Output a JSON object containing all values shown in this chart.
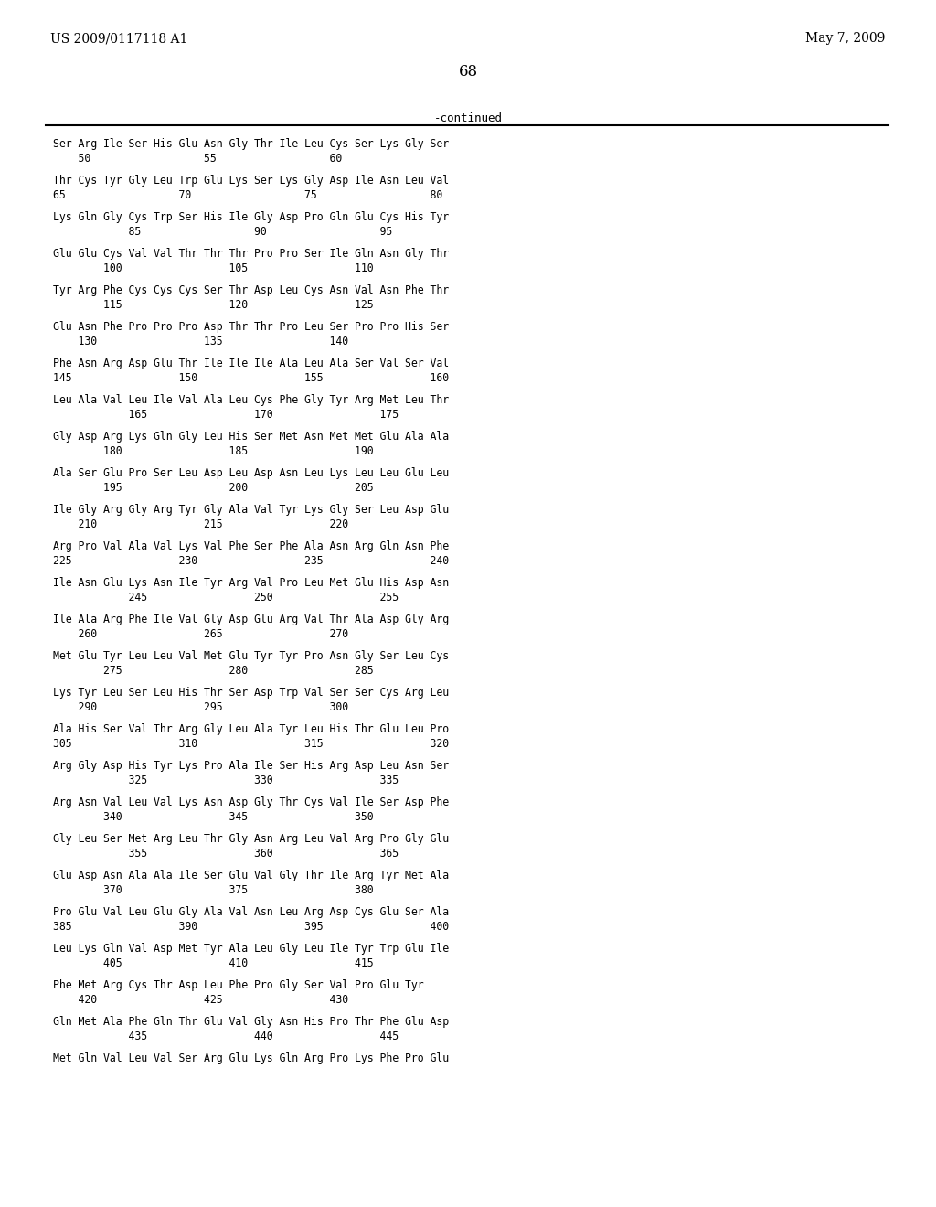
{
  "header_left": "US 2009/0117118 A1",
  "header_right": "May 7, 2009",
  "page_number": "68",
  "continued_label": "-continued",
  "seq_entries": [
    {
      "seq": "Ser Arg Ile Ser His Glu Asn Gly Thr Ile Leu Cys Ser Lys Gly Ser",
      "nums": "    50                  55                  60"
    },
    {
      "seq": "Thr Cys Tyr Gly Leu Trp Glu Lys Ser Lys Gly Asp Ile Asn Leu Val",
      "nums": "65                  70                  75                  80"
    },
    {
      "seq": "Lys Gln Gly Cys Trp Ser His Ile Gly Asp Pro Gln Glu Cys His Tyr",
      "nums": "            85                  90                  95"
    },
    {
      "seq": "Glu Glu Cys Val Val Thr Thr Thr Pro Pro Ser Ile Gln Asn Gly Thr",
      "nums": "        100                 105                 110"
    },
    {
      "seq": "Tyr Arg Phe Cys Cys Cys Ser Thr Asp Leu Cys Asn Val Asn Phe Thr",
      "nums": "        115                 120                 125"
    },
    {
      "seq": "Glu Asn Phe Pro Pro Pro Asp Thr Thr Pro Leu Ser Pro Pro His Ser",
      "nums": "    130                 135                 140"
    },
    {
      "seq": "Phe Asn Arg Asp Glu Thr Ile Ile Ile Ala Leu Ala Ser Val Ser Val",
      "nums": "145                 150                 155                 160"
    },
    {
      "seq": "Leu Ala Val Leu Ile Val Ala Leu Cys Phe Gly Tyr Arg Met Leu Thr",
      "nums": "            165                 170                 175"
    },
    {
      "seq": "Gly Asp Arg Lys Gln Gly Leu His Ser Met Asn Met Met Glu Ala Ala",
      "nums": "        180                 185                 190"
    },
    {
      "seq": "Ala Ser Glu Pro Ser Leu Asp Leu Asp Asn Leu Lys Leu Leu Glu Leu",
      "nums": "        195                 200                 205"
    },
    {
      "seq": "Ile Gly Arg Gly Arg Tyr Gly Ala Val Tyr Lys Gly Ser Leu Asp Glu",
      "nums": "    210                 215                 220"
    },
    {
      "seq": "Arg Pro Val Ala Val Lys Val Phe Ser Phe Ala Asn Arg Gln Asn Phe",
      "nums": "225                 230                 235                 240"
    },
    {
      "seq": "Ile Asn Glu Lys Asn Ile Tyr Arg Val Pro Leu Met Glu His Asp Asn",
      "nums": "            245                 250                 255"
    },
    {
      "seq": "Ile Ala Arg Phe Ile Val Gly Asp Glu Arg Val Thr Ala Asp Gly Arg",
      "nums": "    260                 265                 270"
    },
    {
      "seq": "Met Glu Tyr Leu Leu Val Met Glu Tyr Tyr Pro Asn Gly Ser Leu Cys",
      "nums": "        275                 280                 285"
    },
    {
      "seq": "Lys Tyr Leu Ser Leu His Thr Ser Asp Trp Val Ser Ser Cys Arg Leu",
      "nums": "    290                 295                 300"
    },
    {
      "seq": "Ala His Ser Val Thr Arg Gly Leu Ala Tyr Leu His Thr Glu Leu Pro",
      "nums": "305                 310                 315                 320"
    },
    {
      "seq": "Arg Gly Asp His Tyr Lys Pro Ala Ile Ser His Arg Asp Leu Asn Ser",
      "nums": "            325                 330                 335"
    },
    {
      "seq": "Arg Asn Val Leu Val Lys Asn Asp Gly Thr Cys Val Ile Ser Asp Phe",
      "nums": "        340                 345                 350"
    },
    {
      "seq": "Gly Leu Ser Met Arg Leu Thr Gly Asn Arg Leu Val Arg Pro Gly Glu",
      "nums": "            355                 360                 365"
    },
    {
      "seq": "Glu Asp Asn Ala Ala Ile Ser Glu Val Gly Thr Ile Arg Tyr Met Ala",
      "nums": "        370                 375                 380"
    },
    {
      "seq": "Pro Glu Val Leu Glu Gly Ala Val Asn Leu Arg Asp Cys Glu Ser Ala",
      "nums": "385                 390                 395                 400"
    },
    {
      "seq": "Leu Lys Gln Val Asp Met Tyr Ala Leu Gly Leu Ile Tyr Trp Glu Ile",
      "nums": "        405                 410                 415"
    },
    {
      "seq": "Phe Met Arg Cys Thr Asp Leu Phe Pro Gly Ser Val Pro Glu Tyr",
      "nums": "    420                 425                 430"
    },
    {
      "seq": "Gln Met Ala Phe Gln Thr Glu Val Gly Asn His Pro Thr Phe Glu Asp",
      "nums": "            435                 440                 445"
    },
    {
      "seq": "Met Gln Val Leu Val Ser Arg Glu Lys Gln Arg Pro Lys Phe Pro Glu",
      "nums": ""
    }
  ]
}
